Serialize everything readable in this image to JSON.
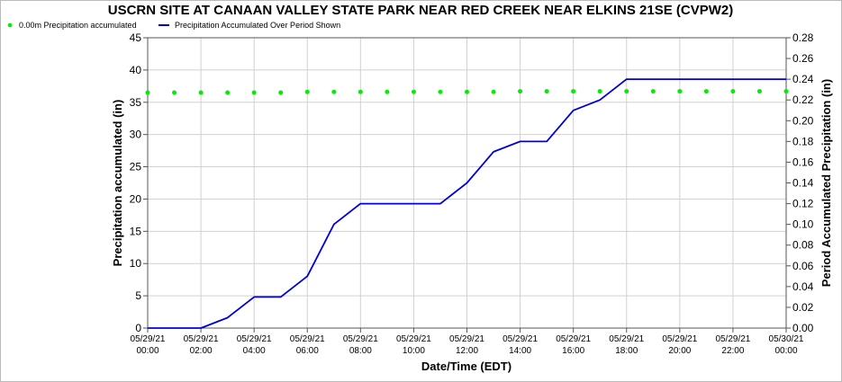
{
  "chart_data": {
    "type": "line",
    "title": "USCRN SITE AT CANAAN VALLEY STATE PARK NEAR RED CREEK NEAR ELKINS 21SE (CVPW2)",
    "xlabel": "Date/Time (EDT)",
    "ylabel_left": "Precipitation accumulated (in)",
    "ylabel_right": "Period Accumulated Precipitation (in)",
    "ylim_left": [
      0,
      45
    ],
    "ylim_right": [
      0,
      0.28
    ],
    "left_ticks": [
      "0",
      "5",
      "10",
      "15",
      "20",
      "25",
      "30",
      "35",
      "40",
      "45"
    ],
    "right_ticks": [
      "0.00",
      "0.02",
      "0.04",
      "0.06",
      "0.08",
      "0.10",
      "0.12",
      "0.14",
      "0.16",
      "0.18",
      "0.20",
      "0.22",
      "0.24",
      "0.26",
      "0.28"
    ],
    "x_ticks": [
      {
        "date": "05/29/21",
        "time": "00:00"
      },
      {
        "date": "05/29/21",
        "time": "02:00"
      },
      {
        "date": "05/29/21",
        "time": "04:00"
      },
      {
        "date": "05/29/21",
        "time": "06:00"
      },
      {
        "date": "05/29/21",
        "time": "08:00"
      },
      {
        "date": "05/29/21",
        "time": "10:00"
      },
      {
        "date": "05/29/21",
        "time": "12:00"
      },
      {
        "date": "05/29/21",
        "time": "14:00"
      },
      {
        "date": "05/29/21",
        "time": "16:00"
      },
      {
        "date": "05/29/21",
        "time": "18:00"
      },
      {
        "date": "05/29/21",
        "time": "20:00"
      },
      {
        "date": "05/29/21",
        "time": "22:00"
      },
      {
        "date": "05/30/21",
        "time": "00:00"
      }
    ],
    "grid": true,
    "legend_position": "top-left",
    "series": [
      {
        "name": "0.00m Precipitation accumulated",
        "axis": "left",
        "style": "dots",
        "color": "#00ee00",
        "x": [
          "05/29/21 00:00",
          "05/29/21 01:00",
          "05/29/21 02:00",
          "05/29/21 03:00",
          "05/29/21 04:00",
          "05/29/21 05:00",
          "05/29/21 06:00",
          "05/29/21 07:00",
          "05/29/21 08:00",
          "05/29/21 09:00",
          "05/29/21 10:00",
          "05/29/21 11:00",
          "05/29/21 12:00",
          "05/29/21 13:00",
          "05/29/21 14:00",
          "05/29/21 15:00",
          "05/29/21 16:00",
          "05/29/21 17:00",
          "05/29/21 18:00",
          "05/29/21 19:00",
          "05/29/21 20:00",
          "05/29/21 21:00",
          "05/29/21 22:00",
          "05/29/21 23:00",
          "05/30/21 00:00"
        ],
        "values": [
          36.5,
          36.5,
          36.5,
          36.5,
          36.5,
          36.5,
          36.6,
          36.6,
          36.6,
          36.6,
          36.6,
          36.6,
          36.6,
          36.6,
          36.7,
          36.7,
          36.7,
          36.7,
          36.7,
          36.7,
          36.7,
          36.7,
          36.7,
          36.7,
          36.7
        ]
      },
      {
        "name": "Precipitation Accumulated Over Period Shown",
        "axis": "right",
        "style": "line",
        "color": "#0000dd",
        "x": [
          "05/29/21 00:00",
          "05/29/21 01:00",
          "05/29/21 02:00",
          "05/29/21 03:00",
          "05/29/21 04:00",
          "05/29/21 05:00",
          "05/29/21 06:00",
          "05/29/21 07:00",
          "05/29/21 08:00",
          "05/29/21 09:00",
          "05/29/21 10:00",
          "05/29/21 11:00",
          "05/29/21 12:00",
          "05/29/21 13:00",
          "05/29/21 14:00",
          "05/29/21 15:00",
          "05/29/21 16:00",
          "05/29/21 17:00",
          "05/29/21 18:00",
          "05/29/21 19:00",
          "05/29/21 20:00",
          "05/29/21 21:00",
          "05/29/21 22:00",
          "05/29/21 23:00",
          "05/30/21 00:00"
        ],
        "values": [
          0.0,
          0.0,
          0.0,
          0.01,
          0.03,
          0.03,
          0.05,
          0.1,
          0.12,
          0.12,
          0.12,
          0.12,
          0.14,
          0.17,
          0.18,
          0.18,
          0.21,
          0.22,
          0.24,
          0.24,
          0.24,
          0.24,
          0.24,
          0.24,
          0.24
        ]
      }
    ]
  }
}
